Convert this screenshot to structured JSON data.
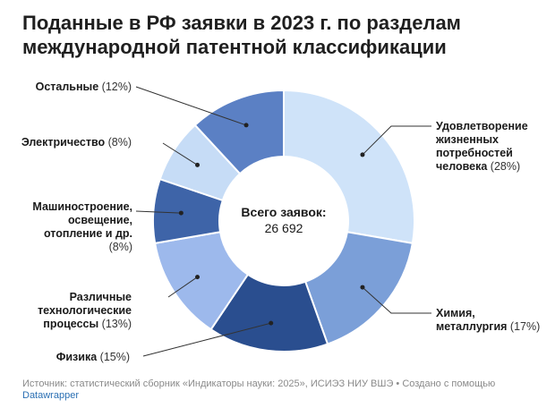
{
  "title_line1": "Поданные в РФ заявки в 2023 г. по разделам",
  "title_line2": "международной патентной классификации",
  "center_label": "Всего заявок:",
  "center_value": "26 692",
  "footer_text": "Источник: статистический сборник «Индикаторы науки: 2025», ИСИЭЗ НИУ ВШЭ • Создано с помощью",
  "footer_link": "Datawrapper",
  "labels": {
    "a_name": [
      "Удовлетворение",
      "жизненных",
      "потребностей",
      "человека"
    ],
    "a_pct": "(28%)",
    "c_name": [
      "Химия,",
      "металлургия"
    ],
    "c_pct": "(17%)",
    "g_name": "Физика",
    "g_pct": "(15%)",
    "b_name": [
      "Различные",
      "технологические",
      "процессы"
    ],
    "b_pct": "(13%)",
    "f_name": [
      "Машиностроение,",
      "освещение,",
      "отопление и др."
    ],
    "f_pct": "(8%)",
    "h_name": "Электричество",
    "h_pct": "(8%)",
    "o_name": "Остальные",
    "o_pct": "(12%)"
  },
  "chart_data": {
    "type": "pie",
    "variant": "donut",
    "title": "Поданные в РФ заявки в 2023 г. по разделам международной патентной классификации",
    "total": 26692,
    "slices": [
      {
        "name": "Удовлетворение жизненных потребностей человека",
        "value": 28,
        "color": "#cfe3f9"
      },
      {
        "name": "Химия, металлургия",
        "value": 17,
        "color": "#7b9fd8"
      },
      {
        "name": "Физика",
        "value": 15,
        "color": "#2a4e8f"
      },
      {
        "name": "Различные технологические процессы",
        "value": 13,
        "color": "#9db9ec"
      },
      {
        "name": "Машиностроение, освещение, отопление и др.",
        "value": 8,
        "color": "#3e64a8"
      },
      {
        "name": "Электричество",
        "value": 8,
        "color": "#c6dcf6"
      },
      {
        "name": "Остальные",
        "value": 12,
        "color": "#5b80c4"
      }
    ]
  }
}
